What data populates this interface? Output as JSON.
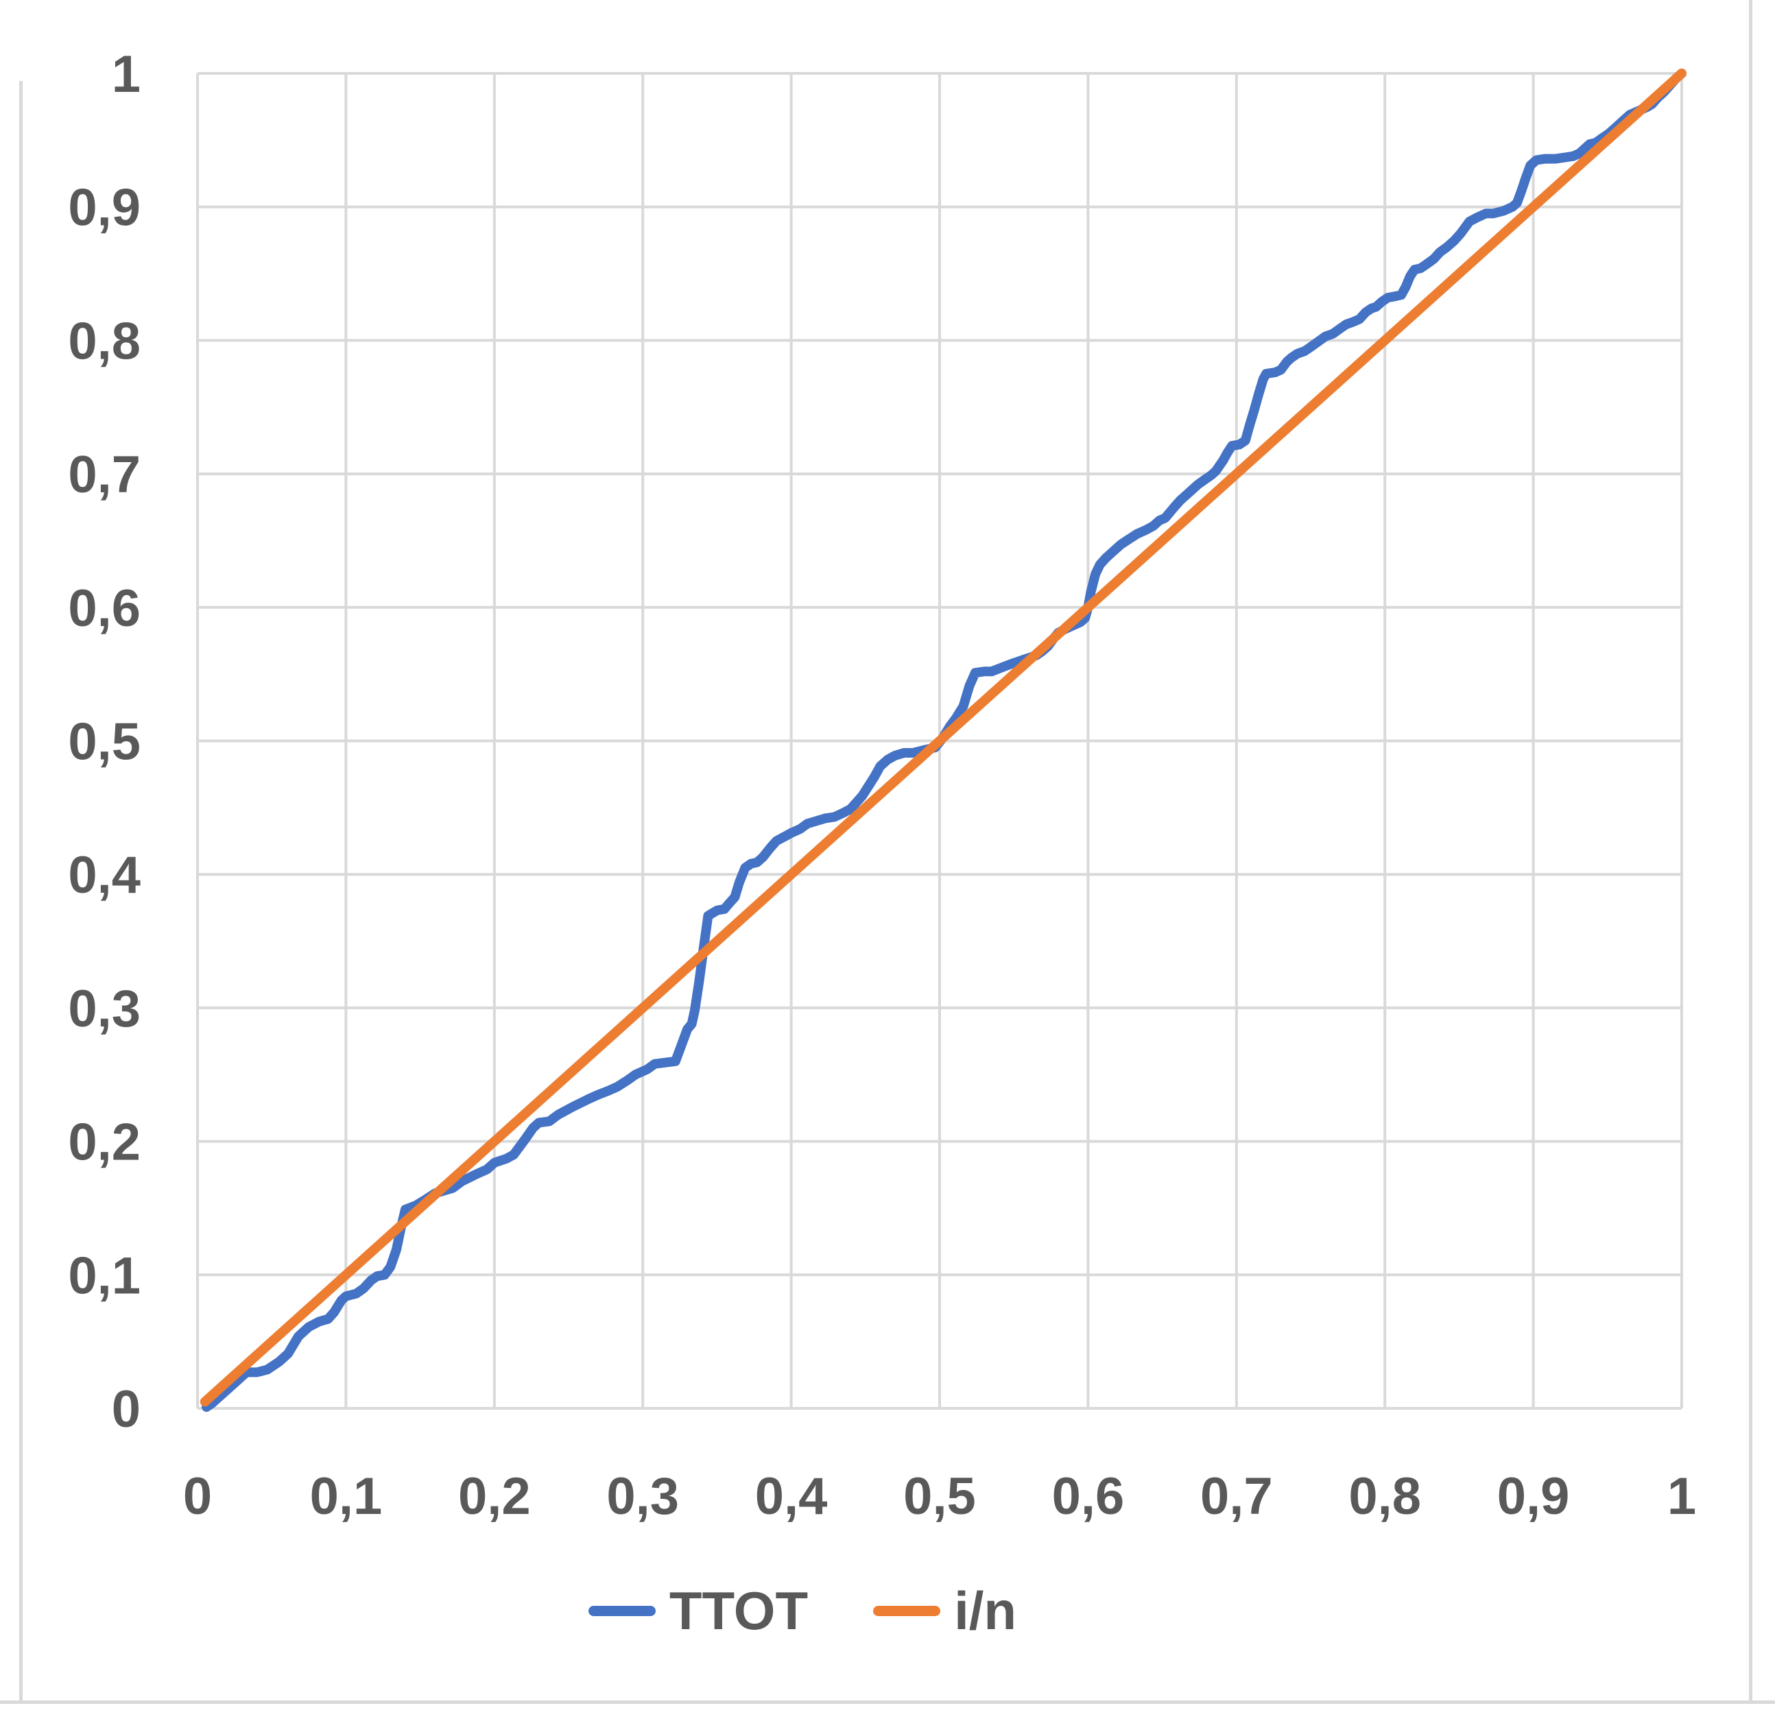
{
  "chart_data": {
    "type": "line",
    "title": "",
    "xlabel": "",
    "ylabel": "",
    "xlim": [
      0,
      1
    ],
    "ylim": [
      0,
      1
    ],
    "grid": true,
    "decimal_separator": ",",
    "x_ticks": {
      "values": [
        0,
        0.1,
        0.2,
        0.3,
        0.4,
        0.5,
        0.6,
        0.7,
        0.8,
        0.9,
        1
      ],
      "labels": [
        "0",
        "0,1",
        "0,2",
        "0,3",
        "0,4",
        "0,5",
        "0,6",
        "0,7",
        "0,8",
        "0,9",
        "1"
      ]
    },
    "y_ticks": {
      "values": [
        0,
        0.1,
        0.2,
        0.3,
        0.4,
        0.5,
        0.6,
        0.7,
        0.8,
        0.9,
        1
      ],
      "labels": [
        "0",
        "0,1",
        "0,2",
        "0,3",
        "0,4",
        "0,5",
        "0,6",
        "0,7",
        "0,8",
        "0,9",
        "1"
      ]
    },
    "legend_position": "bottom",
    "style": {
      "grid_color": "#d9d9d9",
      "tick_label_color": "#595959",
      "background": "#ffffff"
    },
    "series": [
      {
        "name": "TTOT",
        "color": "#4472C4",
        "points": [
          [
            0.006,
            0.001
          ],
          [
            0.01,
            0.004
          ],
          [
            0.018,
            0.012
          ],
          [
            0.025,
            0.019
          ],
          [
            0.03,
            0.024
          ],
          [
            0.033,
            0.027
          ],
          [
            0.04,
            0.027
          ],
          [
            0.047,
            0.029
          ],
          [
            0.055,
            0.035
          ],
          [
            0.061,
            0.041
          ],
          [
            0.068,
            0.054
          ],
          [
            0.075,
            0.061
          ],
          [
            0.082,
            0.065
          ],
          [
            0.088,
            0.067
          ],
          [
            0.092,
            0.072
          ],
          [
            0.097,
            0.081
          ],
          [
            0.1,
            0.084
          ],
          [
            0.107,
            0.086
          ],
          [
            0.112,
            0.09
          ],
          [
            0.117,
            0.096
          ],
          [
            0.121,
            0.099
          ],
          [
            0.126,
            0.1
          ],
          [
            0.13,
            0.106
          ],
          [
            0.134,
            0.119
          ],
          [
            0.137,
            0.135
          ],
          [
            0.14,
            0.149
          ],
          [
            0.147,
            0.152
          ],
          [
            0.153,
            0.156
          ],
          [
            0.16,
            0.161
          ],
          [
            0.166,
            0.163
          ],
          [
            0.172,
            0.165
          ],
          [
            0.178,
            0.17
          ],
          [
            0.187,
            0.175
          ],
          [
            0.195,
            0.179
          ],
          [
            0.2,
            0.184
          ],
          [
            0.208,
            0.187
          ],
          [
            0.213,
            0.19
          ],
          [
            0.217,
            0.196
          ],
          [
            0.221,
            0.202
          ],
          [
            0.226,
            0.21
          ],
          [
            0.23,
            0.214
          ],
          [
            0.237,
            0.215
          ],
          [
            0.243,
            0.22
          ],
          [
            0.253,
            0.226
          ],
          [
            0.264,
            0.232
          ],
          [
            0.27,
            0.235
          ],
          [
            0.277,
            0.238
          ],
          [
            0.283,
            0.241
          ],
          [
            0.29,
            0.246
          ],
          [
            0.295,
            0.25
          ],
          [
            0.303,
            0.254
          ],
          [
            0.308,
            0.258
          ],
          [
            0.315,
            0.259
          ],
          [
            0.322,
            0.26
          ],
          [
            0.326,
            0.272
          ],
          [
            0.33,
            0.284
          ],
          [
            0.333,
            0.288
          ],
          [
            0.335,
            0.298
          ],
          [
            0.338,
            0.32
          ],
          [
            0.341,
            0.345
          ],
          [
            0.344,
            0.369
          ],
          [
            0.35,
            0.373
          ],
          [
            0.355,
            0.374
          ],
          [
            0.358,
            0.378
          ],
          [
            0.362,
            0.383
          ],
          [
            0.365,
            0.394
          ],
          [
            0.369,
            0.405
          ],
          [
            0.373,
            0.408
          ],
          [
            0.377,
            0.409
          ],
          [
            0.381,
            0.413
          ],
          [
            0.386,
            0.42
          ],
          [
            0.39,
            0.425
          ],
          [
            0.395,
            0.428
          ],
          [
            0.4,
            0.431
          ],
          [
            0.406,
            0.434
          ],
          [
            0.411,
            0.438
          ],
          [
            0.417,
            0.44
          ],
          [
            0.423,
            0.442
          ],
          [
            0.429,
            0.443
          ],
          [
            0.435,
            0.446
          ],
          [
            0.44,
            0.449
          ],
          [
            0.444,
            0.454
          ],
          [
            0.448,
            0.459
          ],
          [
            0.452,
            0.466
          ],
          [
            0.456,
            0.473
          ],
          [
            0.46,
            0.481
          ],
          [
            0.465,
            0.486
          ],
          [
            0.47,
            0.489
          ],
          [
            0.476,
            0.491
          ],
          [
            0.482,
            0.491
          ],
          [
            0.489,
            0.493
          ],
          [
            0.497,
            0.495
          ],
          [
            0.502,
            0.502
          ],
          [
            0.507,
            0.511
          ],
          [
            0.511,
            0.517
          ],
          [
            0.516,
            0.526
          ],
          [
            0.52,
            0.541
          ],
          [
            0.524,
            0.551
          ],
          [
            0.53,
            0.552
          ],
          [
            0.535,
            0.552
          ],
          [
            0.542,
            0.555
          ],
          [
            0.549,
            0.558
          ],
          [
            0.557,
            0.561
          ],
          [
            0.565,
            0.564
          ],
          [
            0.569,
            0.567
          ],
          [
            0.573,
            0.571
          ],
          [
            0.577,
            0.577
          ],
          [
            0.58,
            0.581
          ],
          [
            0.585,
            0.584
          ],
          [
            0.591,
            0.587
          ],
          [
            0.595,
            0.589
          ],
          [
            0.598,
            0.592
          ],
          [
            0.6,
            0.6
          ],
          [
            0.602,
            0.612
          ],
          [
            0.605,
            0.625
          ],
          [
            0.608,
            0.632
          ],
          [
            0.612,
            0.637
          ],
          [
            0.616,
            0.641
          ],
          [
            0.622,
            0.647
          ],
          [
            0.626,
            0.65
          ],
          [
            0.633,
            0.655
          ],
          [
            0.639,
            0.658
          ],
          [
            0.644,
            0.661
          ],
          [
            0.648,
            0.665
          ],
          [
            0.652,
            0.667
          ],
          [
            0.658,
            0.675
          ],
          [
            0.662,
            0.68
          ],
          [
            0.666,
            0.684
          ],
          [
            0.67,
            0.688
          ],
          [
            0.674,
            0.692
          ],
          [
            0.679,
            0.696
          ],
          [
            0.683,
            0.699
          ],
          [
            0.686,
            0.702
          ],
          [
            0.691,
            0.71
          ],
          [
            0.694,
            0.716
          ],
          [
            0.697,
            0.721
          ],
          [
            0.702,
            0.722
          ],
          [
            0.706,
            0.725
          ],
          [
            0.709,
            0.737
          ],
          [
            0.712,
            0.748
          ],
          [
            0.715,
            0.76
          ],
          [
            0.718,
            0.771
          ],
          [
            0.72,
            0.775
          ],
          [
            0.726,
            0.776
          ],
          [
            0.73,
            0.778
          ],
          [
            0.734,
            0.784
          ],
          [
            0.737,
            0.787
          ],
          [
            0.741,
            0.79
          ],
          [
            0.746,
            0.792
          ],
          [
            0.75,
            0.795
          ],
          [
            0.755,
            0.799
          ],
          [
            0.76,
            0.803
          ],
          [
            0.765,
            0.805
          ],
          [
            0.77,
            0.809
          ],
          [
            0.774,
            0.812
          ],
          [
            0.779,
            0.814
          ],
          [
            0.783,
            0.816
          ],
          [
            0.787,
            0.821
          ],
          [
            0.791,
            0.824
          ],
          [
            0.794,
            0.825
          ],
          [
            0.798,
            0.829
          ],
          [
            0.802,
            0.832
          ],
          [
            0.807,
            0.833
          ],
          [
            0.811,
            0.834
          ],
          [
            0.814,
            0.84
          ],
          [
            0.817,
            0.848
          ],
          [
            0.82,
            0.853
          ],
          [
            0.824,
            0.854
          ],
          [
            0.828,
            0.857
          ],
          [
            0.833,
            0.861
          ],
          [
            0.837,
            0.866
          ],
          [
            0.842,
            0.87
          ],
          [
            0.847,
            0.875
          ],
          [
            0.851,
            0.88
          ],
          [
            0.857,
            0.889
          ],
          [
            0.862,
            0.892
          ],
          [
            0.868,
            0.895
          ],
          [
            0.873,
            0.895
          ],
          [
            0.88,
            0.897
          ],
          [
            0.886,
            0.9
          ],
          [
            0.889,
            0.903
          ],
          [
            0.892,
            0.912
          ],
          [
            0.895,
            0.922
          ],
          [
            0.898,
            0.931
          ],
          [
            0.902,
            0.935
          ],
          [
            0.908,
            0.936
          ],
          [
            0.915,
            0.936
          ],
          [
            0.921,
            0.937
          ],
          [
            0.927,
            0.938
          ],
          [
            0.931,
            0.94
          ],
          [
            0.934,
            0.943
          ],
          [
            0.938,
            0.947
          ],
          [
            0.942,
            0.948
          ],
          [
            0.947,
            0.952
          ],
          [
            0.951,
            0.955
          ],
          [
            0.956,
            0.96
          ],
          [
            0.961,
            0.965
          ],
          [
            0.965,
            0.969
          ],
          [
            0.969,
            0.971
          ],
          [
            0.973,
            0.973
          ],
          [
            0.977,
            0.975
          ],
          [
            0.98,
            0.977
          ],
          [
            0.984,
            0.982
          ],
          [
            0.988,
            0.986
          ],
          [
            0.992,
            0.991
          ],
          [
            0.996,
            0.996
          ],
          [
            1.0,
            1.0
          ]
        ]
      },
      {
        "name": "i/n",
        "color": "#ED7D31",
        "points": [
          [
            0.005,
            0.005
          ],
          [
            1.0,
            1.0
          ]
        ]
      }
    ]
  },
  "legend": {
    "ttot_label": "TTOT",
    "in_label": "i/n"
  },
  "colors": {
    "ttot": "#4472C4",
    "in": "#ED7D31",
    "grid": "#d9d9d9",
    "text": "#595959"
  }
}
